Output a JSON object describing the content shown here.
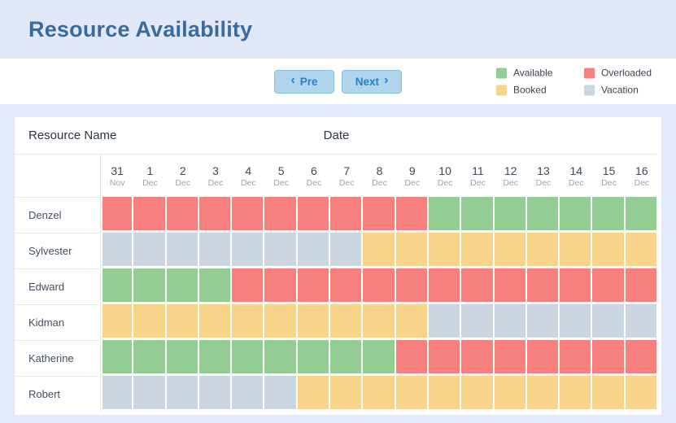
{
  "header": {
    "title": "Resource Availability"
  },
  "toolbar": {
    "prev_label": "Pre",
    "next_label": "Next",
    "prev_chevron": "‹",
    "next_chevron": "›"
  },
  "legend": {
    "items": [
      {
        "key": "available",
        "label": "Available",
        "color": "#93CD92"
      },
      {
        "key": "overloaded",
        "label": "Overloaded",
        "color": "#F7807E"
      },
      {
        "key": "booked",
        "label": "Booked",
        "color": "#F8D38C"
      },
      {
        "key": "vacation",
        "label": "Vacation",
        "color": "#CBD6E1"
      }
    ]
  },
  "table": {
    "name_header": "Resource Name",
    "date_header": "Date",
    "dates": [
      {
        "day": "31",
        "month": "Nov"
      },
      {
        "day": "1",
        "month": "Dec"
      },
      {
        "day": "2",
        "month": "Dec"
      },
      {
        "day": "3",
        "month": "Dec"
      },
      {
        "day": "4",
        "month": "Dec"
      },
      {
        "day": "5",
        "month": "Dec"
      },
      {
        "day": "6",
        "month": "Dec"
      },
      {
        "day": "7",
        "month": "Dec"
      },
      {
        "day": "8",
        "month": "Dec"
      },
      {
        "day": "9",
        "month": "Dec"
      },
      {
        "day": "10",
        "month": "Dec"
      },
      {
        "day": "11",
        "month": "Dec"
      },
      {
        "day": "12",
        "month": "Dec"
      },
      {
        "day": "13",
        "month": "Dec"
      },
      {
        "day": "14",
        "month": "Dec"
      },
      {
        "day": "15",
        "month": "Dec"
      },
      {
        "day": "16",
        "month": "Dec"
      }
    ],
    "rows": [
      {
        "name": "Denzel",
        "cells": [
          "overloaded",
          "overloaded",
          "overloaded",
          "overloaded",
          "overloaded",
          "overloaded",
          "overloaded",
          "overloaded",
          "overloaded",
          "overloaded",
          "available",
          "available",
          "available",
          "available",
          "available",
          "available",
          "available"
        ]
      },
      {
        "name": "Sylvester",
        "cells": [
          "vacation",
          "vacation",
          "vacation",
          "vacation",
          "vacation",
          "vacation",
          "vacation",
          "vacation",
          "booked",
          "booked",
          "booked",
          "booked",
          "booked",
          "booked",
          "booked",
          "booked",
          "booked"
        ]
      },
      {
        "name": "Edward",
        "cells": [
          "available",
          "available",
          "available",
          "available",
          "overloaded",
          "overloaded",
          "overloaded",
          "overloaded",
          "overloaded",
          "overloaded",
          "overloaded",
          "overloaded",
          "overloaded",
          "overloaded",
          "overloaded",
          "overloaded",
          "overloaded"
        ]
      },
      {
        "name": "Kidman",
        "cells": [
          "booked",
          "booked",
          "booked",
          "booked",
          "booked",
          "booked",
          "booked",
          "booked",
          "booked",
          "booked",
          "vacation",
          "vacation",
          "vacation",
          "vacation",
          "vacation",
          "vacation",
          "vacation"
        ]
      },
      {
        "name": "Katherine",
        "cells": [
          "available",
          "available",
          "available",
          "available",
          "available",
          "available",
          "available",
          "available",
          "available",
          "overloaded",
          "overloaded",
          "overloaded",
          "overloaded",
          "overloaded",
          "overloaded",
          "overloaded",
          "overloaded"
        ]
      },
      {
        "name": "Robert",
        "cells": [
          "vacation",
          "vacation",
          "vacation",
          "vacation",
          "vacation",
          "vacation",
          "booked",
          "booked",
          "booked",
          "booked",
          "booked",
          "booked",
          "booked",
          "booked",
          "booked",
          "booked",
          "booked"
        ]
      }
    ]
  }
}
